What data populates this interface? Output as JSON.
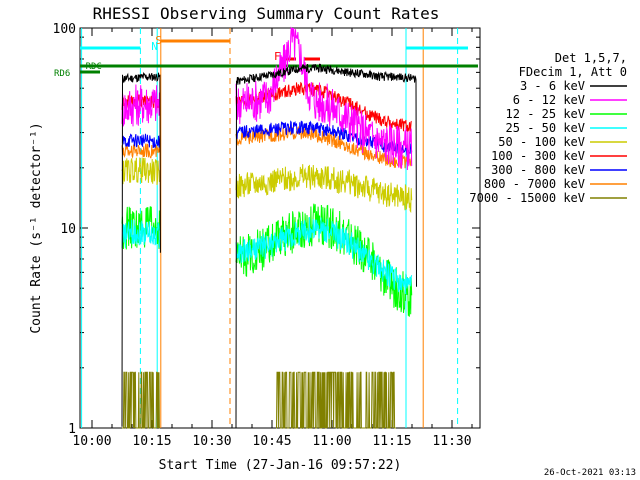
{
  "chart_data": {
    "type": "line",
    "title": "RHESSI Observing Summary Count Rates",
    "xlabel": "Start Time (27-Jan-16 09:57:22)",
    "ylabel": "Count Rate (s⁻¹ detector⁻¹)",
    "yscale": "log",
    "ylim": [
      1,
      100
    ],
    "xlim_minutes": [
      -3,
      37
    ],
    "x_unit": "minutes after 10:00 UT",
    "x_ticks": [
      {
        "t": 0,
        "label": "10:00"
      },
      {
        "t": 15,
        "label": "10:15"
      },
      {
        "t": 30,
        "label": "10:30"
      },
      {
        "t": 45,
        "label": "10:45"
      },
      {
        "t": 60,
        "label": "11:00"
      },
      {
        "t": 75,
        "label": "11:15"
      },
      {
        "t": 90,
        "label": "11:30"
      }
    ],
    "y_ticks": [
      {
        "v": 1,
        "label": "1"
      },
      {
        "v": 10,
        "label": "10"
      },
      {
        "v": 100,
        "label": "100"
      }
    ],
    "legend": {
      "header": [
        "Det 1,5,7,",
        "FDecim 1, Att 0"
      ],
      "position": "right"
    },
    "series": [
      {
        "name": "3 - 6 keV",
        "color": "#000000",
        "points": [
          [
            7.5,
            1
          ],
          [
            7.6,
            56
          ],
          [
            10,
            56
          ],
          [
            13,
            57
          ],
          [
            16,
            57
          ],
          [
            17,
            57
          ],
          [
            17.2,
            1
          ]
        ],
        "points2": [
          [
            36,
            1
          ],
          [
            36.1,
            54
          ],
          [
            42,
            57
          ],
          [
            48,
            60
          ],
          [
            52,
            63
          ],
          [
            56,
            63
          ],
          [
            60,
            62
          ],
          [
            64,
            60
          ],
          [
            68,
            59
          ],
          [
            72,
            57
          ],
          [
            76,
            57
          ],
          [
            80,
            56
          ],
          [
            81,
            56
          ],
          [
            81.2,
            1
          ]
        ]
      },
      {
        "name": "6 - 12 keV",
        "color": "#ff00ff",
        "points": [
          [
            7.5,
            40
          ],
          [
            10,
            41
          ],
          [
            13,
            42
          ],
          [
            16,
            42
          ],
          [
            17,
            41
          ]
        ],
        "points2": [
          [
            36,
            42
          ],
          [
            40,
            43
          ],
          [
            44,
            45
          ],
          [
            46,
            55
          ],
          [
            48,
            65
          ],
          [
            50,
            88
          ],
          [
            52,
            75
          ],
          [
            54,
            50
          ],
          [
            56,
            43
          ],
          [
            58,
            42
          ],
          [
            60,
            40
          ],
          [
            64,
            35
          ],
          [
            68,
            30
          ],
          [
            72,
            27
          ],
          [
            76,
            26
          ],
          [
            78,
            25
          ],
          [
            80,
            25
          ]
        ]
      },
      {
        "name": "12 - 25 keV",
        "color": "#00ff00",
        "points": [
          [
            7.5,
            10
          ],
          [
            10,
            10
          ],
          [
            13,
            10
          ],
          [
            16,
            10
          ],
          [
            17,
            10
          ]
        ],
        "points2": [
          [
            36,
            7
          ],
          [
            40,
            7.5
          ],
          [
            44,
            8
          ],
          [
            48,
            9
          ],
          [
            52,
            10
          ],
          [
            56,
            10.5
          ],
          [
            60,
            10
          ],
          [
            64,
            9
          ],
          [
            68,
            7.5
          ],
          [
            72,
            6
          ],
          [
            76,
            5
          ],
          [
            80,
            4.5
          ]
        ]
      },
      {
        "name": "25 - 50 keV",
        "color": "#00ffff",
        "points": [
          [
            7.5,
            9
          ],
          [
            10,
            9.5
          ],
          [
            13,
            9.5
          ],
          [
            16,
            9.3
          ],
          [
            17,
            9.2
          ]
        ],
        "points2": [
          [
            36,
            7.5
          ],
          [
            40,
            7.8
          ],
          [
            44,
            8.2
          ],
          [
            48,
            8.8
          ],
          [
            52,
            9.5
          ],
          [
            56,
            10
          ],
          [
            60,
            9.5
          ],
          [
            64,
            8.5
          ],
          [
            68,
            7.3
          ],
          [
            72,
            6.3
          ],
          [
            76,
            5.5
          ],
          [
            80,
            5
          ]
        ]
      },
      {
        "name": "50 - 100 keV",
        "color": "#cccc00",
        "points": [
          [
            7.5,
            19
          ],
          [
            10,
            19.5
          ],
          [
            13,
            19.5
          ],
          [
            16,
            19
          ],
          [
            17,
            19
          ]
        ],
        "points2": [
          [
            36,
            16
          ],
          [
            40,
            16.5
          ],
          [
            44,
            17
          ],
          [
            48,
            17.5
          ],
          [
            52,
            18
          ],
          [
            56,
            18
          ],
          [
            60,
            17.5
          ],
          [
            64,
            17
          ],
          [
            68,
            16
          ],
          [
            72,
            15
          ],
          [
            76,
            14.5
          ],
          [
            80,
            14
          ]
        ]
      },
      {
        "name": "100 - 300 keV",
        "color": "#ff0000",
        "points": [
          [
            7.5,
            42
          ],
          [
            10,
            43
          ],
          [
            13,
            43
          ],
          [
            16,
            43
          ],
          [
            17,
            42
          ]
        ],
        "points2": [
          [
            36,
            43
          ],
          [
            40,
            44
          ],
          [
            44,
            46
          ],
          [
            48,
            48
          ],
          [
            52,
            50
          ],
          [
            56,
            49
          ],
          [
            60,
            46
          ],
          [
            64,
            42
          ],
          [
            68,
            38
          ],
          [
            72,
            35
          ],
          [
            76,
            33
          ],
          [
            80,
            32
          ]
        ]
      },
      {
        "name": "300 - 800 keV",
        "color": "#0000ff",
        "points": [
          [
            7.5,
            27
          ],
          [
            10,
            27.5
          ],
          [
            13,
            27.5
          ],
          [
            16,
            27
          ],
          [
            17,
            27
          ]
        ],
        "points2": [
          [
            36,
            30
          ],
          [
            40,
            30.5
          ],
          [
            44,
            31
          ],
          [
            48,
            31.5
          ],
          [
            52,
            32
          ],
          [
            56,
            31.5
          ],
          [
            60,
            30.5
          ],
          [
            64,
            29
          ],
          [
            68,
            27.5
          ],
          [
            72,
            26
          ],
          [
            76,
            25
          ],
          [
            80,
            24.5
          ]
        ]
      },
      {
        "name": "800 - 7000 keV",
        "color": "#ff8000",
        "points": [
          [
            7.5,
            24
          ],
          [
            10,
            24.5
          ],
          [
            13,
            24.5
          ],
          [
            16,
            24
          ],
          [
            17,
            24
          ]
        ],
        "points2": [
          [
            36,
            28
          ],
          [
            40,
            28.5
          ],
          [
            44,
            29
          ],
          [
            48,
            29.5
          ],
          [
            52,
            30
          ],
          [
            56,
            29
          ],
          [
            60,
            27.5
          ],
          [
            64,
            25.5
          ],
          [
            68,
            24
          ],
          [
            72,
            22.5
          ],
          [
            76,
            21.5
          ],
          [
            80,
            21
          ]
        ]
      },
      {
        "name": "7000 - 15000 keV",
        "color": "#808000",
        "points": [
          [
            7.5,
            1
          ],
          [
            10,
            1.9
          ],
          [
            13,
            1.9
          ],
          [
            16,
            1.9
          ],
          [
            17,
            1
          ]
        ],
        "points2": [
          [
            46,
            1
          ],
          [
            48,
            1.9
          ],
          [
            52,
            1.9
          ],
          [
            56,
            1.9
          ],
          [
            60,
            1.9
          ],
          [
            64,
            1.9
          ],
          [
            68,
            1
          ],
          [
            72,
            1.7
          ],
          [
            76,
            1
          ]
        ]
      }
    ],
    "annotations": [
      {
        "label": "S",
        "color": "#ff8000"
      },
      {
        "label": "N",
        "color": "#00ffff"
      },
      {
        "label": "F",
        "color": "#ff0000"
      },
      {
        "label": "RD6",
        "color": "#008000"
      },
      {
        "label": "RDC",
        "color": "#008000"
      }
    ],
    "footer_date": "26-Oct-2021 03:13"
  }
}
